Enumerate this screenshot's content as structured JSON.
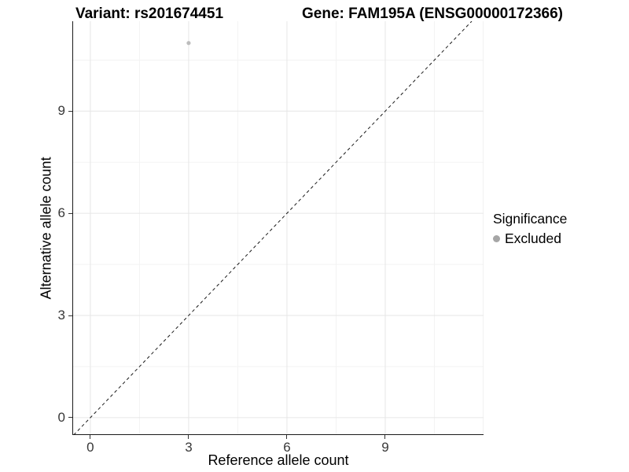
{
  "chart_data": {
    "type": "scatter",
    "titles": {
      "left": "Variant: rs201674451",
      "right": "Gene: FAM195A (ENSG00000172366)"
    },
    "xlabel": "Reference allele count",
    "ylabel": "Alternative allele count",
    "x_ticks": [
      0,
      3,
      6,
      9
    ],
    "y_ticks": [
      0,
      3,
      6,
      9
    ],
    "x_grid_major": [
      0,
      3,
      6,
      9,
      12
    ],
    "x_grid_minor": [
      1.5,
      4.5,
      7.5,
      10.5
    ],
    "y_grid_major": [
      0,
      3,
      6,
      9
    ],
    "y_grid_minor": [
      1.5,
      4.5,
      7.5,
      10.5
    ],
    "x_range": [
      -0.55,
      12.0
    ],
    "y_range": [
      -0.51,
      11.64
    ],
    "points": [
      {
        "x": 3,
        "y": 11,
        "significance": "Excluded"
      }
    ],
    "reference_line": {
      "equation": "y = x",
      "style": "dashed",
      "color": "#1a1a1a"
    },
    "legend": {
      "title": "Significance",
      "position": "right",
      "items": [
        {
          "label": "Excluded",
          "color": "#a6a6a6"
        }
      ]
    },
    "colors": {
      "point": "#bdbdbd",
      "grid_major": "#e6e6e6",
      "grid_minor": "#f3f3f3",
      "axis": "#1a1a1a",
      "tick": "#333333"
    },
    "grid": true
  }
}
